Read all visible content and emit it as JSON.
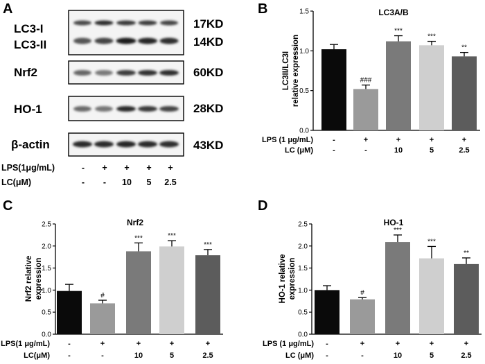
{
  "panel_a": {
    "letter": "A",
    "blots": [
      {
        "labels": [
          "LC3-I",
          "LC3-II"
        ],
        "kd": [
          "17KD",
          "14KD"
        ]
      },
      {
        "labels": [
          "Nrf2"
        ],
        "kd": [
          "60KD"
        ]
      },
      {
        "labels": [
          "HO-1"
        ],
        "kd": [
          "28KD"
        ]
      },
      {
        "labels": [
          "β-actin"
        ],
        "kd": [
          "43KD"
        ]
      }
    ],
    "conditions": [
      {
        "label": "LPS(1μg/mL)",
        "values": [
          "-",
          "+",
          "+",
          "+",
          "+"
        ]
      },
      {
        "label": "LC(μM)",
        "values": [
          "-",
          "-",
          "10",
          "5",
          "2.5"
        ]
      }
    ]
  },
  "chart_data": [
    {
      "panel": "B",
      "type": "bar",
      "title": "LC3A/B",
      "ylabel": "LC3II/LC3I\nrelative expression",
      "ylim": [
        0,
        1.5
      ],
      "yticks": [
        "0.0",
        "0.5",
        "1.0",
        "1.5"
      ],
      "values": [
        1.02,
        0.52,
        1.12,
        1.07,
        0.93
      ],
      "errors": [
        0.06,
        0.05,
        0.07,
        0.05,
        0.05
      ],
      "significance": [
        "",
        "###",
        "***",
        "***",
        "**"
      ],
      "bar_colors": [
        "#0a0a0a",
        "#9a9a9a",
        "#7a7a7a",
        "#cfcfcf",
        "#5c5c5c"
      ],
      "conditions": [
        {
          "label": "LPS (1 μg/mL)",
          "values": [
            "-",
            "+",
            "+",
            "+",
            "+"
          ]
        },
        {
          "label": "LC (μM)",
          "values": [
            "-",
            "-",
            "10",
            "5",
            "2.5"
          ]
        }
      ]
    },
    {
      "panel": "C",
      "type": "bar",
      "title": "Nrf2",
      "ylabel": "Nrf2 relative\nexpression",
      "ylim": [
        0,
        2.5
      ],
      "yticks": [
        "0.0",
        "0.5",
        "1.0",
        "1.5",
        "2.0",
        "2.5"
      ],
      "values": [
        0.98,
        0.7,
        1.88,
        1.99,
        1.79
      ],
      "errors": [
        0.15,
        0.07,
        0.19,
        0.13,
        0.13
      ],
      "significance": [
        "",
        "#",
        "***",
        "***",
        "***"
      ],
      "bar_colors": [
        "#0a0a0a",
        "#9a9a9a",
        "#7a7a7a",
        "#cfcfcf",
        "#5c5c5c"
      ],
      "conditions": [
        {
          "label": "LPS(1 μg/mL)",
          "values": [
            "-",
            "+",
            "+",
            "+",
            "+"
          ]
        },
        {
          "label": "LC(μM)",
          "values": [
            "-",
            "-",
            "10",
            "5",
            "2.5"
          ]
        }
      ]
    },
    {
      "panel": "D",
      "type": "bar",
      "title": "HO-1",
      "ylabel": "HO-1 relative\nexpression",
      "ylim": [
        0,
        2.5
      ],
      "yticks": [
        "0.0",
        "0.5",
        "1.0",
        "1.5",
        "2.0",
        "2.5"
      ],
      "values": [
        1.0,
        0.79,
        2.09,
        1.72,
        1.59
      ],
      "errors": [
        0.1,
        0.04,
        0.16,
        0.27,
        0.14
      ],
      "significance": [
        "",
        "#",
        "***",
        "***",
        "**"
      ],
      "bar_colors": [
        "#0a0a0a",
        "#9a9a9a",
        "#7a7a7a",
        "#cfcfcf",
        "#5c5c5c"
      ],
      "conditions": [
        {
          "label": "LPS (1 μg/mL)",
          "values": [
            "-",
            "+",
            "+",
            "+",
            "+"
          ]
        },
        {
          "label": "LC (μM)",
          "values": [
            "-",
            "-",
            "10",
            "5",
            "2.5"
          ]
        }
      ]
    }
  ]
}
